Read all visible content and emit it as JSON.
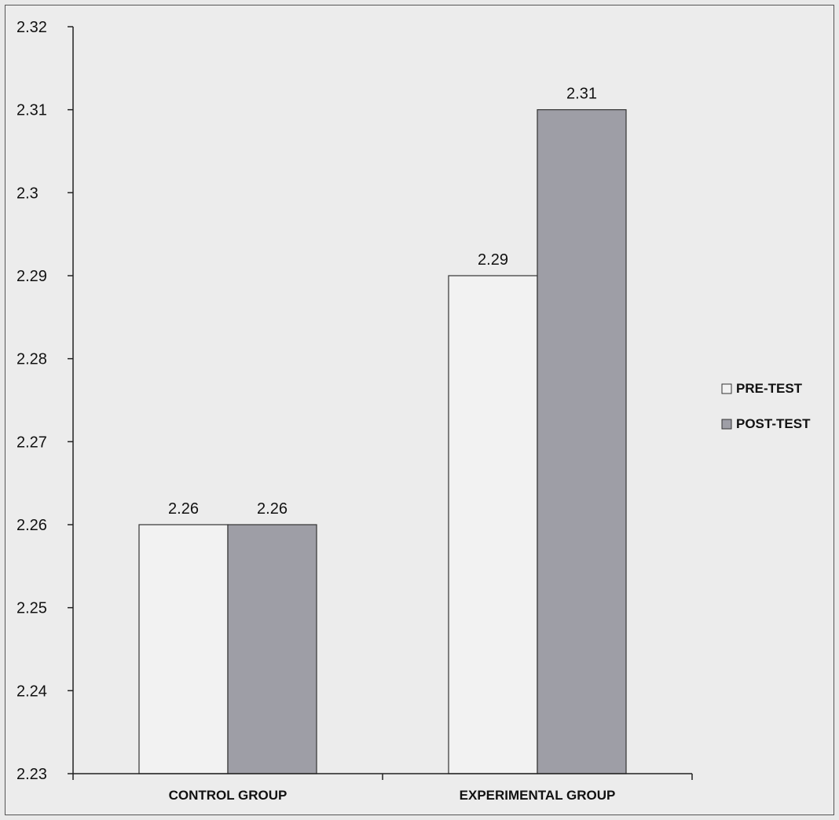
{
  "chart_data": {
    "type": "bar",
    "categories": [
      "CONTROL GROUP",
      "EXPERIMENTAL GROUP"
    ],
    "series": [
      {
        "name": "PRE-TEST",
        "values": [
          2.26,
          2.29
        ],
        "color": "#f2f2f2"
      },
      {
        "name": "POST-TEST",
        "values": [
          2.26,
          2.31
        ],
        "color": "#9e9ea6"
      }
    ],
    "data_labels": [
      [
        "2.26",
        "2.29"
      ],
      [
        "2.26",
        "2.31"
      ]
    ],
    "ylim": [
      2.23,
      2.32
    ],
    "yticks": [
      "2.23",
      "2.24",
      "2.25",
      "2.26",
      "2.27",
      "2.28",
      "2.29",
      "2.3",
      "2.31",
      "2.32"
    ],
    "title": "",
    "xlabel": "",
    "ylabel": "",
    "legend_position": "right",
    "grid": false
  }
}
